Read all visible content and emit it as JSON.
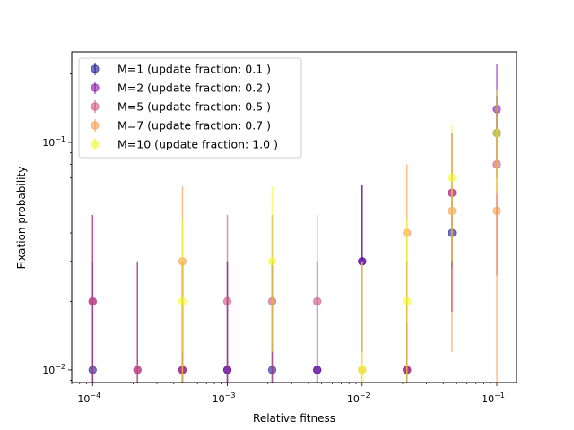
{
  "chart_data": {
    "type": "scatter",
    "title": "",
    "xlabel": "Relative fitness",
    "ylabel": "Fixation probability",
    "xscale": "log",
    "yscale": "log",
    "xlim": [
      7e-05,
      0.14
    ],
    "ylim": [
      0.0088,
      0.25
    ],
    "xticks": [
      {
        "value": 0.0001,
        "base": "10",
        "exp": "−4"
      },
      {
        "value": 0.001,
        "base": "10",
        "exp": "−3"
      },
      {
        "value": 0.01,
        "base": "10",
        "exp": "−2"
      },
      {
        "value": 0.1,
        "base": "10",
        "exp": "−1"
      }
    ],
    "yticks": [
      {
        "value": 0.01,
        "base": "10",
        "exp": "−2"
      },
      {
        "value": 0.1,
        "base": "10",
        "exp": "−1"
      }
    ],
    "grid": false,
    "legend_position": "top-left",
    "x": [
      0.0001,
      0.000215,
      0.000464,
      0.001,
      0.00215,
      0.00464,
      0.01,
      0.0215,
      0.0464,
      0.1
    ],
    "series": [
      {
        "name": "M=1 (update fraction: 0.1 )",
        "color": "#0d0887",
        "y": [
          0.01,
          null,
          0.01,
          0.01,
          0.01,
          0.01,
          0.03,
          0.01,
          0.04,
          0.11
        ],
        "yerr_low": [
          0.005,
          null,
          0.005,
          0.005,
          0.005,
          0.005,
          0.012,
          0.005,
          0.028,
          0.07
        ],
        "yerr_high": [
          0.03,
          null,
          0.03,
          0.03,
          0.03,
          0.03,
          0.065,
          0.03,
          0.058,
          0.16
        ]
      },
      {
        "name": "M=2 (update fraction: 0.2 )",
        "color": "#7e03a8",
        "y": [
          0.02,
          0.01,
          0.01,
          0.01,
          null,
          0.01,
          0.03,
          0.01,
          0.06,
          0.14
        ],
        "yerr_low": [
          0.004,
          0.005,
          0.005,
          0.005,
          null,
          0.005,
          0.012,
          0.005,
          0.018,
          0.08
        ],
        "yerr_high": [
          0.048,
          0.03,
          0.03,
          0.03,
          null,
          0.03,
          0.065,
          0.03,
          0.11,
          0.22
        ]
      },
      {
        "name": "M=5 (update fraction: 0.5 )",
        "color": "#cc4778",
        "y": [
          0.02,
          0.01,
          0.01,
          0.02,
          0.02,
          0.02,
          null,
          0.01,
          0.06,
          0.08
        ],
        "yerr_low": [
          0.004,
          0.005,
          0.005,
          0.004,
          0.004,
          0.004,
          null,
          0.005,
          0.018,
          0.026
        ],
        "yerr_high": [
          0.048,
          0.03,
          0.03,
          0.048,
          0.048,
          0.048,
          null,
          0.03,
          0.11,
          0.15
        ]
      },
      {
        "name": "M=7 (update fraction: 0.7 )",
        "color": "#f89540",
        "y": [
          null,
          null,
          0.03,
          null,
          null,
          null,
          0.01,
          0.04,
          0.05,
          0.05
        ],
        "yerr_low": [
          null,
          null,
          0.012,
          null,
          null,
          null,
          0.005,
          0.016,
          0.012,
          0.008
        ],
        "yerr_high": [
          null,
          null,
          0.064,
          null,
          null,
          null,
          0.03,
          0.08,
          0.105,
          0.105
        ]
      },
      {
        "name": "M=10 (update fraction: 1.0 )",
        "color": "#f0f921",
        "y": [
          null,
          null,
          0.02,
          null,
          0.03,
          null,
          0.01,
          0.02,
          0.07,
          0.11
        ],
        "yerr_low": [
          null,
          null,
          0.004,
          null,
          0.012,
          null,
          0.005,
          0.004,
          0.03,
          0.06
        ],
        "yerr_high": [
          null,
          null,
          0.046,
          null,
          0.064,
          null,
          0.03,
          0.046,
          0.12,
          0.17
        ]
      }
    ]
  }
}
